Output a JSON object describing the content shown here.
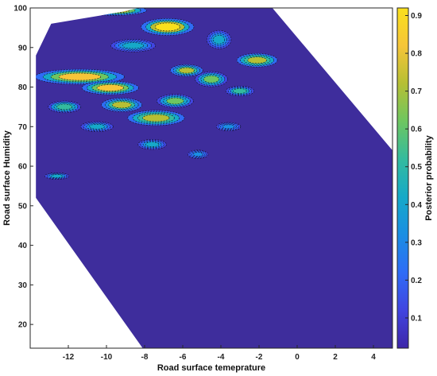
{
  "chart_data": {
    "type": "heatmap",
    "xlabel": "Road surface temeprature",
    "ylabel": "Road surface Humidity",
    "colorbar_label": "Posterior probability",
    "xlim": [
      -14,
      5
    ],
    "ylim": [
      14,
      100
    ],
    "x_ticks": [
      -12,
      -10,
      -8,
      -6,
      -4,
      -2,
      0,
      2,
      4
    ],
    "y_ticks": [
      20,
      30,
      40,
      50,
      60,
      70,
      80,
      90,
      100
    ],
    "colorbar_ticks": [
      0.1,
      0.2,
      0.3,
      0.4,
      0.5,
      0.6,
      0.7,
      0.8,
      0.9
    ],
    "colorbar_range": [
      0.02,
      0.92
    ],
    "grid": false,
    "colors": {
      "low": "#3e2d9c",
      "mid": "#1fa3c3",
      "high": "#f3e51b",
      "colormap": [
        "#3e26a8",
        "#4145e0",
        "#2f6cf6",
        "#1b8ee3",
        "#16a9c8",
        "#34bb9e",
        "#6ec660",
        "#b6bf34",
        "#f6c538",
        "#f9e01c"
      ]
    },
    "domain_polygon": [
      [
        -12.9,
        96
      ],
      [
        -9.2,
        99
      ],
      [
        -8.3,
        100
      ],
      [
        -1.3,
        100
      ],
      [
        5,
        64
      ],
      [
        5,
        14
      ],
      [
        -8.1,
        14
      ],
      [
        -13.7,
        52
      ],
      [
        -13.7,
        88
      ]
    ],
    "hotspots": [
      {
        "x": -6.8,
        "y": 95.2,
        "rx": 1.3,
        "ry": 2.0,
        "value": 0.9
      },
      {
        "x": -9.6,
        "y": 99.4,
        "rx": 1.6,
        "ry": 1.2,
        "value": 0.85
      },
      {
        "x": -11.4,
        "y": 82.6,
        "rx": 2.2,
        "ry": 1.8,
        "value": 0.85
      },
      {
        "x": -9.8,
        "y": 79.8,
        "rx": 1.4,
        "ry": 1.6,
        "value": 0.8
      },
      {
        "x": -7.4,
        "y": 72.2,
        "rx": 1.4,
        "ry": 1.8,
        "value": 0.75
      },
      {
        "x": -9.2,
        "y": 75.5,
        "rx": 1.0,
        "ry": 1.6,
        "value": 0.7
      },
      {
        "x": -2.1,
        "y": 86.8,
        "rx": 1.0,
        "ry": 1.6,
        "value": 0.75
      },
      {
        "x": -5.8,
        "y": 84.2,
        "rx": 0.8,
        "ry": 1.4,
        "value": 0.7
      },
      {
        "x": -4.5,
        "y": 82.0,
        "rx": 0.8,
        "ry": 1.8,
        "value": 0.6
      },
      {
        "x": -6.4,
        "y": 76.5,
        "rx": 0.9,
        "ry": 1.6,
        "value": 0.6
      },
      {
        "x": -12.2,
        "y": 75.0,
        "rx": 0.8,
        "ry": 1.4,
        "value": 0.55
      },
      {
        "x": -8.6,
        "y": 90.5,
        "rx": 1.1,
        "ry": 1.5,
        "value": 0.45
      },
      {
        "x": -4.1,
        "y": 92.0,
        "rx": 0.6,
        "ry": 2.2,
        "value": 0.45
      },
      {
        "x": -3.0,
        "y": 79.0,
        "rx": 0.7,
        "ry": 1.2,
        "value": 0.5
      },
      {
        "x": -10.5,
        "y": 70.0,
        "rx": 0.8,
        "ry": 1.2,
        "value": 0.45
      },
      {
        "x": -7.6,
        "y": 65.5,
        "rx": 0.7,
        "ry": 1.2,
        "value": 0.4
      },
      {
        "x": -5.2,
        "y": 63.0,
        "rx": 0.5,
        "ry": 1.0,
        "value": 0.35
      },
      {
        "x": -12.6,
        "y": 57.5,
        "rx": 0.6,
        "ry": 0.8,
        "value": 0.4
      },
      {
        "x": -3.6,
        "y": 70.0,
        "rx": 0.6,
        "ry": 1.0,
        "value": 0.35
      }
    ]
  }
}
